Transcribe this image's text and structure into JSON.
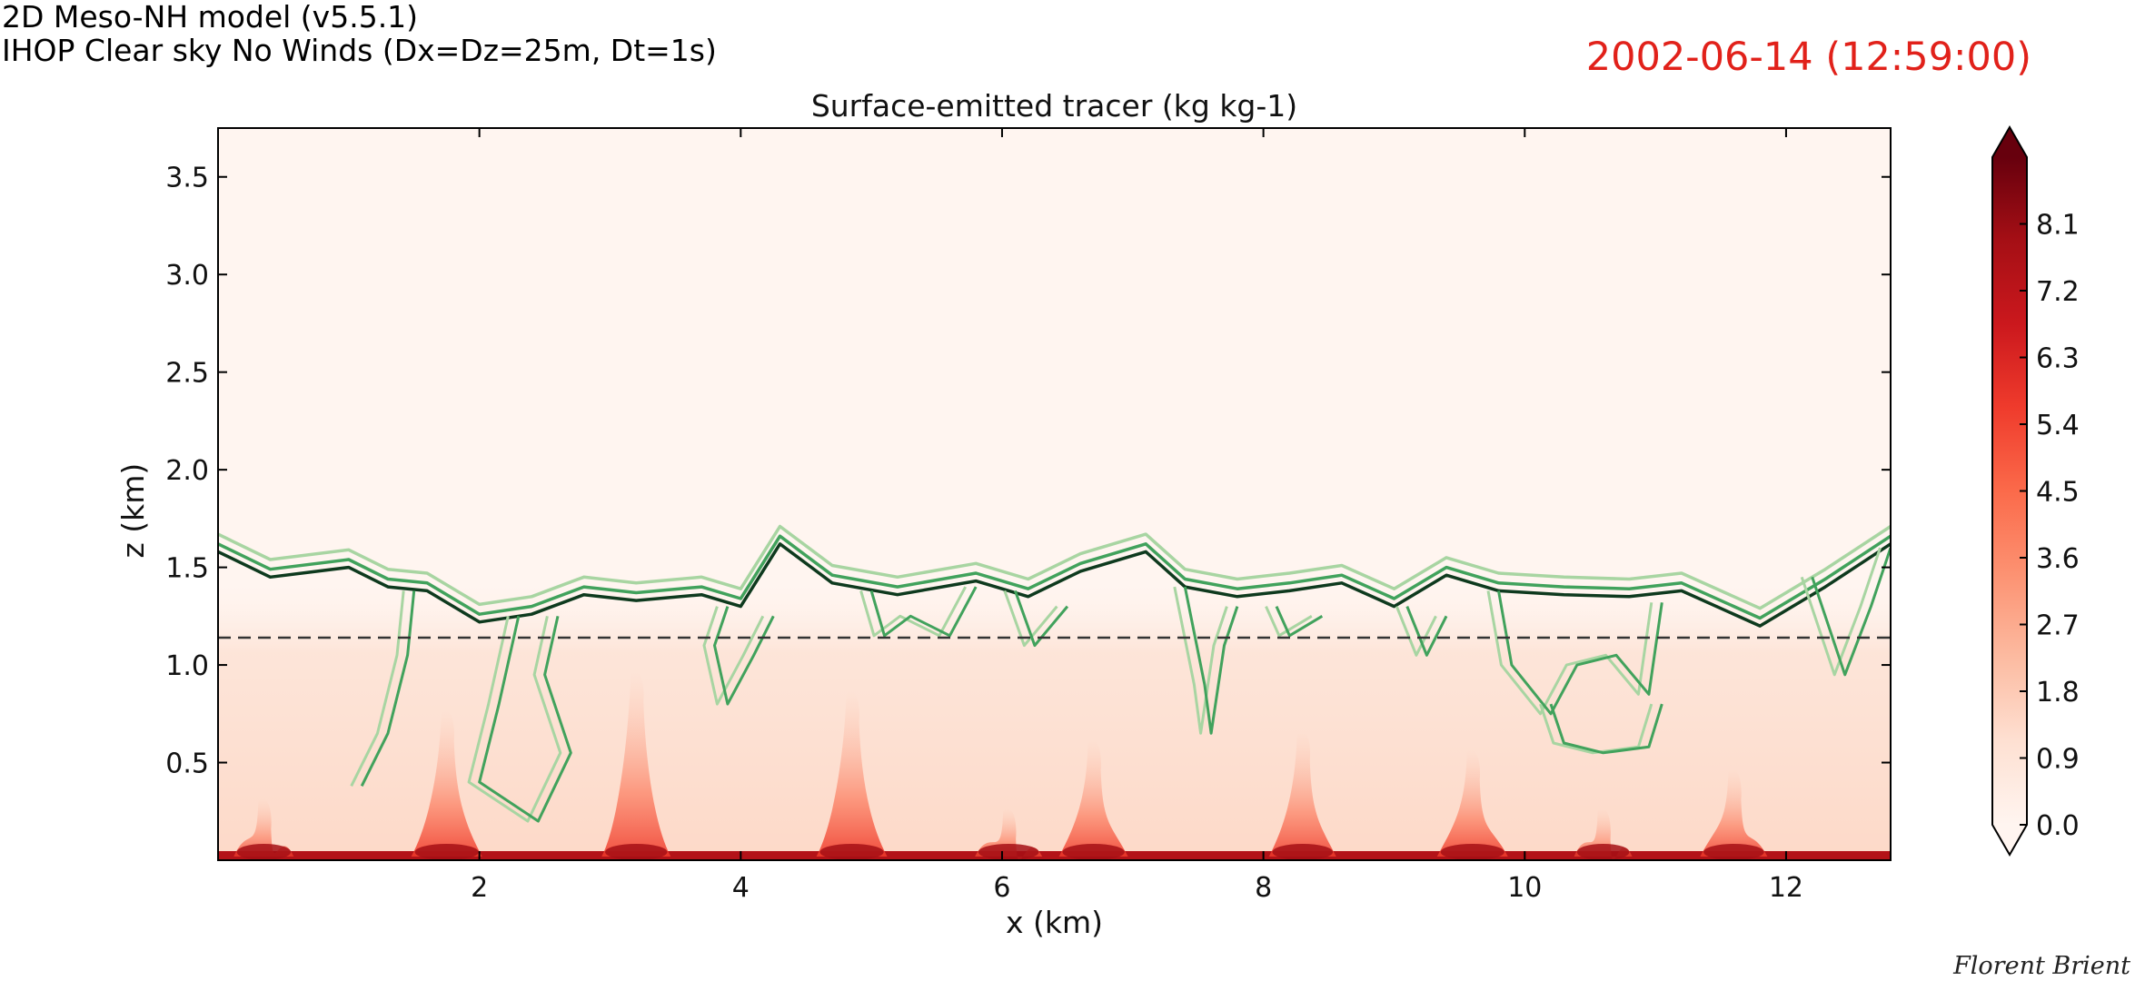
{
  "header": {
    "model": "2D Meso-NH model (v5.5.1)",
    "experiment": "IHOP Clear sky No Winds (Dx=Dz=25m, Dt=1s)",
    "timestamp": "2002-06-14 (12:59:00)"
  },
  "credit": "Florent Brient",
  "colors": {
    "timestamp": "#e1211a",
    "colormap": [
      "#fff5f0",
      "#fee0d2",
      "#fcbba1",
      "#fc9272",
      "#fb6a4a",
      "#ef3b2c",
      "#cb181d",
      "#a50f15",
      "#67000d"
    ],
    "contour_outer": "#a8d5a2",
    "contour_mid": "#41a25c",
    "contour_inner": "#0e3a1e"
  },
  "chart_data": {
    "type": "heatmap",
    "title": "Surface-emitted tracer (kg kg-1)",
    "xlabel": "x (km)",
    "ylabel": "z (km)",
    "xlim": [
      0,
      12.8
    ],
    "ylim": [
      0,
      3.75
    ],
    "xticks": [
      2,
      4,
      6,
      8,
      10,
      12
    ],
    "yticks": [
      0.5,
      1.0,
      1.5,
      2.0,
      2.5,
      3.0,
      3.5
    ],
    "colorbar": {
      "min": 0.0,
      "max": 9.0,
      "extend": "both",
      "ticks": [
        0.0,
        0.9,
        1.8,
        2.7,
        3.6,
        4.5,
        5.4,
        6.3,
        7.2,
        8.1
      ]
    },
    "boundary_layer_height_km": 1.14,
    "boundary_layer_line_style": "dashed",
    "surface_plumes": [
      {
        "x": 0.35,
        "top": 0.3,
        "strength": 0.55
      },
      {
        "x": 1.75,
        "top": 0.75,
        "strength": 0.85
      },
      {
        "x": 3.2,
        "top": 0.95,
        "strength": 0.8
      },
      {
        "x": 4.85,
        "top": 0.85,
        "strength": 0.85
      },
      {
        "x": 6.05,
        "top": 0.25,
        "strength": 0.75
      },
      {
        "x": 6.7,
        "top": 0.6,
        "strength": 0.8
      },
      {
        "x": 8.3,
        "top": 0.65,
        "strength": 0.75
      },
      {
        "x": 9.6,
        "top": 0.55,
        "strength": 0.85
      },
      {
        "x": 10.6,
        "top": 0.25,
        "strength": 0.5
      },
      {
        "x": 11.6,
        "top": 0.45,
        "strength": 0.75
      }
    ],
    "tracer_top_contour": [
      [
        0.0,
        1.58
      ],
      [
        0.4,
        1.45
      ],
      [
        1.0,
        1.5
      ],
      [
        1.3,
        1.4
      ],
      [
        1.6,
        1.38
      ],
      [
        2.0,
        1.22
      ],
      [
        2.4,
        1.26
      ],
      [
        2.8,
        1.36
      ],
      [
        3.2,
        1.33
      ],
      [
        3.7,
        1.36
      ],
      [
        4.0,
        1.3
      ],
      [
        4.3,
        1.62
      ],
      [
        4.7,
        1.42
      ],
      [
        5.2,
        1.36
      ],
      [
        5.8,
        1.43
      ],
      [
        6.2,
        1.35
      ],
      [
        6.6,
        1.48
      ],
      [
        7.1,
        1.58
      ],
      [
        7.4,
        1.4
      ],
      [
        7.8,
        1.35
      ],
      [
        8.2,
        1.38
      ],
      [
        8.6,
        1.42
      ],
      [
        9.0,
        1.3
      ],
      [
        9.4,
        1.46
      ],
      [
        9.8,
        1.38
      ],
      [
        10.3,
        1.36
      ],
      [
        10.8,
        1.35
      ],
      [
        11.2,
        1.38
      ],
      [
        11.8,
        1.2
      ],
      [
        12.3,
        1.4
      ],
      [
        12.8,
        1.62
      ]
    ],
    "plume_contours": [
      [
        [
          1.5,
          1.38
        ],
        [
          1.45,
          1.05
        ],
        [
          1.3,
          0.65
        ],
        [
          1.1,
          0.38
        ]
      ],
      [
        [
          2.3,
          1.25
        ],
        [
          2.15,
          0.8
        ],
        [
          2.0,
          0.4
        ],
        [
          2.45,
          0.2
        ],
        [
          2.7,
          0.55
        ],
        [
          2.5,
          0.95
        ],
        [
          2.6,
          1.25
        ]
      ],
      [
        [
          3.9,
          1.3
        ],
        [
          3.8,
          1.1
        ],
        [
          3.9,
          0.8
        ],
        [
          4.1,
          1.05
        ],
        [
          4.25,
          1.25
        ]
      ],
      [
        [
          5.0,
          1.38
        ],
        [
          5.1,
          1.15
        ],
        [
          5.3,
          1.25
        ],
        [
          5.6,
          1.15
        ],
        [
          5.8,
          1.4
        ]
      ],
      [
        [
          6.1,
          1.38
        ],
        [
          6.25,
          1.1
        ],
        [
          6.5,
          1.3
        ]
      ],
      [
        [
          7.4,
          1.4
        ],
        [
          7.55,
          0.9
        ],
        [
          7.6,
          0.65
        ],
        [
          7.7,
          1.1
        ],
        [
          7.8,
          1.3
        ]
      ],
      [
        [
          8.1,
          1.3
        ],
        [
          8.2,
          1.15
        ],
        [
          8.45,
          1.25
        ]
      ],
      [
        [
          9.1,
          1.3
        ],
        [
          9.25,
          1.05
        ],
        [
          9.4,
          1.25
        ]
      ],
      [
        [
          9.8,
          1.38
        ],
        [
          9.9,
          1.0
        ],
        [
          10.2,
          0.75
        ],
        [
          10.4,
          1.0
        ],
        [
          10.7,
          1.05
        ],
        [
          10.95,
          0.85
        ],
        [
          11.05,
          1.32
        ]
      ],
      [
        [
          10.2,
          0.8
        ],
        [
          10.3,
          0.6
        ],
        [
          10.6,
          0.55
        ],
        [
          10.95,
          0.58
        ],
        [
          11.05,
          0.8
        ]
      ],
      [
        [
          12.2,
          1.45
        ],
        [
          12.35,
          1.15
        ],
        [
          12.45,
          0.95
        ],
        [
          12.65,
          1.3
        ],
        [
          12.8,
          1.6
        ]
      ]
    ]
  }
}
